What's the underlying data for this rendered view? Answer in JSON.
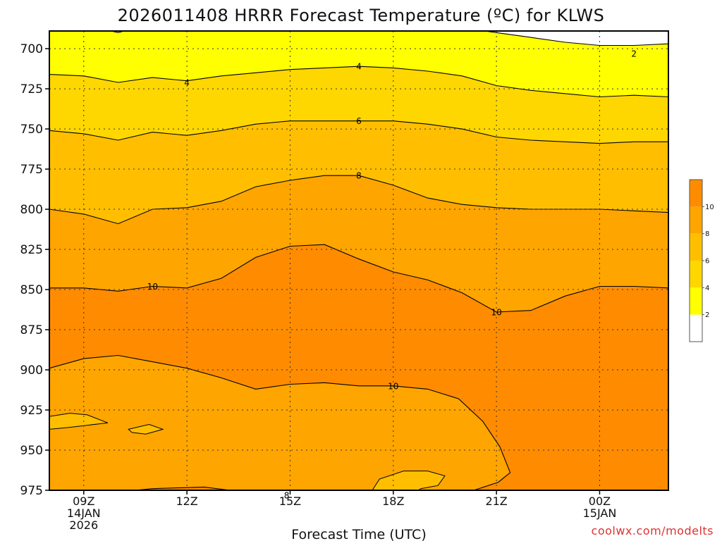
{
  "chart_data": {
    "type": "contour",
    "title": "2026011408 HRRR Forecast Temperature (ºC) for KLWS",
    "xlabel": "Forecast Time (UTC)",
    "ylabel": "",
    "credit": "coolwx.com/modelts",
    "x_unit": "hours since 2026-01-14 08Z",
    "xlim": [
      8,
      26
    ],
    "ylim": [
      975,
      700
    ],
    "y_ticks": [
      700,
      725,
      750,
      775,
      800,
      825,
      850,
      875,
      900,
      925,
      950,
      975
    ],
    "x_ticks": [
      {
        "x": 9,
        "lines": [
          "09Z",
          "14JAN",
          "2026"
        ]
      },
      {
        "x": 12,
        "lines": [
          "12Z"
        ]
      },
      {
        "x": 15,
        "lines": [
          "15Z"
        ]
      },
      {
        "x": 18,
        "lines": [
          "18Z"
        ]
      },
      {
        "x": 21,
        "lines": [
          "21Z"
        ]
      },
      {
        "x": 24,
        "lines": [
          "00Z",
          "15JAN"
        ]
      }
    ],
    "grid": true,
    "colorbar": {
      "levels": [
        0,
        2,
        4,
        6,
        8,
        10,
        12
      ],
      "labels": [
        "2",
        "4",
        "6",
        "8",
        "10"
      ],
      "colors": [
        "#ffffff",
        "#ffff00",
        "#ffd700",
        "#ffbf00",
        "#ffa500",
        "#ff8c00"
      ]
    },
    "fills": [
      {
        "level": 2,
        "color": "#ffff00",
        "top": [
          [
            8,
            685
          ],
          [
            9,
            685
          ],
          [
            10,
            690
          ],
          [
            11,
            684
          ],
          [
            12,
            686
          ],
          [
            13,
            683
          ],
          [
            14,
            685
          ],
          [
            15,
            685
          ],
          [
            16,
            685
          ],
          [
            17,
            685
          ],
          [
            18,
            685
          ],
          [
            19,
            685
          ],
          [
            20,
            687
          ],
          [
            21,
            690
          ],
          [
            22,
            693
          ],
          [
            23,
            696
          ],
          [
            24,
            698
          ],
          [
            25,
            698
          ],
          [
            26,
            697
          ]
        ]
      },
      {
        "level": 4,
        "color": "#ffd700",
        "top": [
          [
            8,
            716
          ],
          [
            9,
            717
          ],
          [
            10,
            721
          ],
          [
            11,
            718
          ],
          [
            12,
            720
          ],
          [
            13,
            717
          ],
          [
            14,
            715
          ],
          [
            15,
            713
          ],
          [
            16,
            712
          ],
          [
            17,
            711
          ],
          [
            18,
            712
          ],
          [
            19,
            714
          ],
          [
            20,
            717
          ],
          [
            21,
            723
          ],
          [
            22,
            726
          ],
          [
            23,
            728
          ],
          [
            24,
            730
          ],
          [
            25,
            729
          ],
          [
            26,
            730
          ]
        ]
      },
      {
        "level": 6,
        "color": "#ffbf00",
        "top": [
          [
            8,
            751
          ],
          [
            9,
            753
          ],
          [
            10,
            757
          ],
          [
            11,
            752
          ],
          [
            12,
            754
          ],
          [
            13,
            751
          ],
          [
            14,
            747
          ],
          [
            15,
            745
          ],
          [
            16,
            745
          ],
          [
            17,
            745
          ],
          [
            18,
            745
          ],
          [
            19,
            747
          ],
          [
            20,
            750
          ],
          [
            21,
            755
          ],
          [
            22,
            757
          ],
          [
            23,
            758
          ],
          [
            24,
            759
          ],
          [
            25,
            758
          ],
          [
            26,
            758
          ]
        ]
      },
      {
        "level": 8,
        "color": "#ffa500",
        "top": [
          [
            8,
            800
          ],
          [
            9,
            803
          ],
          [
            10,
            809
          ],
          [
            11,
            800
          ],
          [
            12,
            799
          ],
          [
            13,
            795
          ],
          [
            14,
            786
          ],
          [
            15,
            782
          ],
          [
            16,
            779
          ],
          [
            17,
            779
          ],
          [
            18,
            785
          ],
          [
            19,
            793
          ],
          [
            20,
            797
          ],
          [
            21,
            799
          ],
          [
            22,
            800
          ],
          [
            23,
            800
          ],
          [
            24,
            800
          ],
          [
            25,
            801
          ],
          [
            26,
            802
          ]
        ]
      },
      {
        "level": 10,
        "color": "#ff8c00",
        "top": [
          [
            8,
            849
          ],
          [
            9,
            849
          ],
          [
            10,
            851
          ],
          [
            11,
            848
          ],
          [
            12,
            849
          ],
          [
            13,
            843
          ],
          [
            14,
            830
          ],
          [
            15,
            823
          ],
          [
            16,
            822
          ],
          [
            17,
            831
          ],
          [
            18,
            839
          ],
          [
            19,
            844
          ],
          [
            20,
            852
          ],
          [
            21,
            864
          ],
          [
            22,
            863
          ],
          [
            23,
            854
          ],
          [
            24,
            848
          ],
          [
            25,
            848
          ],
          [
            26,
            849
          ]
        ]
      },
      {
        "level": 10,
        "color": "#ffa500",
        "top": [
          [
            8,
            899
          ],
          [
            9,
            893
          ],
          [
            10,
            891
          ],
          [
            11,
            895
          ],
          [
            12,
            899
          ],
          [
            13,
            905
          ],
          [
            14,
            912
          ],
          [
            15,
            909
          ],
          [
            16,
            908
          ],
          [
            17,
            910
          ],
          [
            18,
            910
          ],
          [
            19,
            912
          ],
          [
            19.9,
            918
          ],
          [
            20.6,
            932
          ],
          [
            21.1,
            948
          ],
          [
            21.4,
            964
          ],
          [
            21.05,
            970
          ],
          [
            20.2,
            976
          ],
          [
            19.5,
            978
          ],
          [
            19.0,
            978
          ],
          [
            18.0,
            978
          ],
          [
            17.0,
            978
          ],
          [
            16.0,
            978
          ],
          [
            15.0,
            978
          ],
          [
            14.0,
            977
          ],
          [
            12.5,
            973
          ],
          [
            11.0,
            974
          ],
          [
            10.0,
            976
          ],
          [
            8.0,
            976
          ]
        ]
      }
    ],
    "patches": [
      {
        "level": 8,
        "color": "#ffbf00",
        "points": [
          [
            8,
            929
          ],
          [
            8.6,
            927
          ],
          [
            9.1,
            928
          ],
          [
            9.7,
            933
          ],
          [
            8.5,
            936
          ],
          [
            8,
            937
          ]
        ]
      },
      {
        "level": 8,
        "color": "#ffbf00",
        "points": [
          [
            10.3,
            937
          ],
          [
            10.9,
            934
          ],
          [
            11.3,
            937
          ],
          [
            10.8,
            940
          ],
          [
            10.4,
            939
          ]
        ]
      },
      {
        "level": 8,
        "color": "#ffbf00",
        "points": [
          [
            17.3,
            978
          ],
          [
            17.6,
            968
          ],
          [
            18.3,
            963
          ],
          [
            19.0,
            963
          ],
          [
            19.5,
            966
          ],
          [
            19.3,
            972
          ],
          [
            18.8,
            974
          ],
          [
            18.5,
            978
          ]
        ]
      }
    ],
    "terrain": {
      "color": "#a0522d",
      "top": [
        [
          8,
          980
        ],
        [
          14,
          980
        ],
        [
          19,
          980
        ],
        [
          20,
          979
        ],
        [
          22,
          979
        ],
        [
          24,
          977
        ],
        [
          25,
          976
        ],
        [
          26,
          976
        ]
      ]
    },
    "contour_labels": [
      {
        "text": "2",
        "x": 25.0,
        "y": 703
      },
      {
        "text": "4",
        "x": 12.0,
        "y": 721
      },
      {
        "text": "4",
        "x": 17.0,
        "y": 711
      },
      {
        "text": "6",
        "x": 17.0,
        "y": 745
      },
      {
        "text": "8",
        "x": 17.0,
        "y": 779
      },
      {
        "text": "10",
        "x": 11.0,
        "y": 848
      },
      {
        "text": "10",
        "x": 21.0,
        "y": 864
      },
      {
        "text": "10",
        "x": 18.0,
        "y": 910
      },
      {
        "text": "8",
        "x": 14.9,
        "y": 978
      }
    ]
  }
}
